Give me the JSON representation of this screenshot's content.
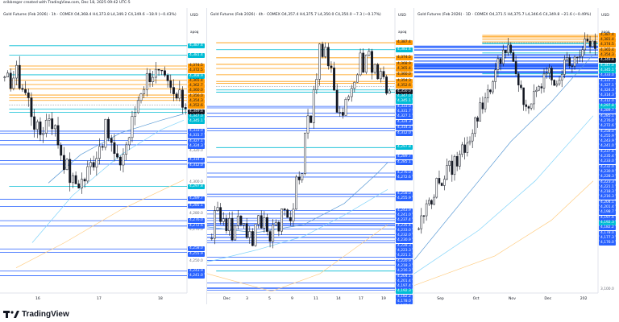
{
  "credit": "erikbreger created with TradingView.com, Dec 18, 2025 09:42 UTC-5",
  "brand": {
    "name": "TradingView"
  },
  "colors": {
    "orange": "#ff9800",
    "cyan": "#00bcd4",
    "blue": "#2962ff",
    "dark": "#131722",
    "white": "#ffffff"
  },
  "panels": [
    {
      "title": "Gold Futures (Feb 2026) · 1h · COMEX  O4,368.4  H4,373.8  L4,349.2  C4,349.6  −18.9 (−0.43%)",
      "currency": "USD",
      "apoq": "apoq",
      "price_labels": [
        {
          "text": "4,340.0",
          "y": 4340
        },
        {
          "text": "4,320.0",
          "y": 4320
        },
        {
          "text": "4,300.0",
          "y": 4300
        },
        {
          "text": "4,280.0",
          "y": 4280
        },
        {
          "text": "4,270.0",
          "y": 4270
        },
        {
          "text": "4,250.0",
          "y": 4250
        }
      ],
      "tags": [
        {
          "text": "4,387.4",
          "kind": "cyan",
          "y": 4387.4
        },
        {
          "text": "4,381.4",
          "kind": "cyan",
          "y": 4381.4
        },
        {
          "text": "4,374.5",
          "kind": "orange",
          "y": 4374.5
        },
        {
          "text": "4,372.5",
          "kind": "orange",
          "y": 4372.5
        },
        {
          "text": "4,368.9",
          "kind": "cyan",
          "y": 4368.9
        },
        {
          "text": "4,365.4",
          "kind": "orange",
          "y": 4365.4
        },
        {
          "text": "4,362.7",
          "kind": "orange",
          "y": 4362.7
        },
        {
          "text": "4,360.0",
          "kind": "orange",
          "y": 4360.0
        },
        {
          "text": "4,356.0",
          "kind": "orange",
          "y": 4356.0
        },
        {
          "text": "4,354.3",
          "kind": "orange",
          "y": 4354.3
        },
        {
          "text": "4,352.6",
          "kind": "orange",
          "y": 4352.6
        },
        {
          "text": "4,349.6",
          "kind": "dark",
          "y": 4349.6
        },
        {
          "text": "4,347.0",
          "kind": "cyan",
          "y": 4347.0
        },
        {
          "text": "4,345.1",
          "kind": "cyan",
          "y": 4345.1
        },
        {
          "text": "4,333.0",
          "kind": "blue",
          "y": 4333.0
        },
        {
          "text": "4,331.7",
          "kind": "blue",
          "y": 4331.7
        },
        {
          "text": "4,327.1",
          "kind": "blue",
          "y": 4327.1
        },
        {
          "text": "4,324.3",
          "kind": "blue",
          "y": 4324.3
        },
        {
          "text": "4,314.3",
          "kind": "blue",
          "y": 4314.3
        },
        {
          "text": "4,312.0",
          "kind": "blue",
          "y": 4312.0
        },
        {
          "text": "4,297.8",
          "kind": "cyan",
          "y": 4297.8
        },
        {
          "text": "4,289.7",
          "kind": "blue",
          "y": 4289.7
        },
        {
          "text": "4,285.1",
          "kind": "blue",
          "y": 4285.1
        },
        {
          "text": "4,276.0",
          "kind": "blue",
          "y": 4276.0
        },
        {
          "text": "4,272.6",
          "kind": "blue",
          "y": 4272.6
        },
        {
          "text": "4,258.0",
          "kind": "blue",
          "y": 4258.0
        },
        {
          "text": "4,255.9",
          "kind": "blue",
          "y": 4255.9
        },
        {
          "text": "4,243.9",
          "kind": "blue",
          "y": 4243.9
        },
        {
          "text": "4,241.0",
          "kind": "blue",
          "y": 4241.0
        }
      ],
      "x_labels": [
        "16",
        "17",
        "18"
      ]
    },
    {
      "title": "Gold Futures (Feb 2026) · 4h · COMEX  O4,357.4  H4,375.7  L4,350.0  C4,350.0  −7.3 (−0.17%)",
      "currency": "USD",
      "apoq": "apoq",
      "price_labels": [],
      "tags": [
        {
          "text": "4,387.4",
          "kind": "orange",
          "y": 4387.4
        },
        {
          "text": "4,381.4",
          "kind": "cyan",
          "y": 4381.4
        },
        {
          "text": "4,374.5",
          "kind": "orange",
          "y": 4374.5
        },
        {
          "text": "4,368.9",
          "kind": "orange",
          "y": 4368.9
        },
        {
          "text": "4,365.4",
          "kind": "orange",
          "y": 4365.4
        },
        {
          "text": "4,360.0",
          "kind": "orange",
          "y": 4360.0
        },
        {
          "text": "4,354.3",
          "kind": "orange",
          "y": 4354.3
        },
        {
          "text": "4,352.6",
          "kind": "orange",
          "y": 4352.6
        },
        {
          "text": "4,350.0",
          "kind": "dark",
          "y": 4350.0
        },
        {
          "text": "4,347.0",
          "kind": "cyan",
          "y": 4347.0
        },
        {
          "text": "4,345.1",
          "kind": "cyan",
          "y": 4345.1
        },
        {
          "text": "4,333.0",
          "kind": "blue",
          "y": 4333.0
        },
        {
          "text": "4,331.7",
          "kind": "blue",
          "y": 4331.7
        },
        {
          "text": "4,327.1",
          "kind": "blue",
          "y": 4327.1
        },
        {
          "text": "4,324.3",
          "kind": "blue",
          "y": 4324.3
        },
        {
          "text": "4,314.3",
          "kind": "blue",
          "y": 4314.3
        },
        {
          "text": "4,312.0",
          "kind": "blue",
          "y": 4312.0
        },
        {
          "text": "4,297.8",
          "kind": "cyan",
          "y": 4297.8
        },
        {
          "text": "4,289.7",
          "kind": "blue",
          "y": 4289.7
        },
        {
          "text": "4,285.1",
          "kind": "blue",
          "y": 4285.1
        },
        {
          "text": "4,276.0",
          "kind": "blue",
          "y": 4276.0
        },
        {
          "text": "4,272.6",
          "kind": "blue",
          "y": 4272.6
        },
        {
          "text": "4,258.0",
          "kind": "blue",
          "y": 4258.0
        },
        {
          "text": "4,255.9",
          "kind": "blue",
          "y": 4255.9
        },
        {
          "text": "4,243.9",
          "kind": "blue",
          "y": 4243.9
        },
        {
          "text": "4,241.0",
          "kind": "blue",
          "y": 4241.0
        },
        {
          "text": "4,237.4",
          "kind": "blue",
          "y": 4237.4
        },
        {
          "text": "4,235.4",
          "kind": "blue",
          "y": 4235.4
        },
        {
          "text": "4,233.0",
          "kind": "blue",
          "y": 4233.0
        },
        {
          "text": "4,232.0",
          "kind": "blue",
          "y": 4232.0
        },
        {
          "text": "4,230.9",
          "kind": "blue",
          "y": 4230.9
        },
        {
          "text": "4,228.3",
          "kind": "blue",
          "y": 4228.3
        },
        {
          "text": "4,223.3",
          "kind": "blue",
          "y": 4223.3
        },
        {
          "text": "4,221.1",
          "kind": "blue",
          "y": 4221.1
        },
        {
          "text": "4,220.9",
          "kind": "blue",
          "y": 4220.9
        },
        {
          "text": "4,218.3",
          "kind": "blue",
          "y": 4218.3
        },
        {
          "text": "4,216.3",
          "kind": "blue",
          "y": 4216.3
        },
        {
          "text": "4,204.1",
          "kind": "blue",
          "y": 4204.1
        },
        {
          "text": "4,201.4",
          "kind": "blue",
          "y": 4201.4
        },
        {
          "text": "4,197.4",
          "kind": "blue",
          "y": 4197.4
        },
        {
          "text": "4,192.3",
          "kind": "cyan",
          "y": 4192.3
        },
        {
          "text": "4,182.2",
          "kind": "blue",
          "y": 4182.2
        },
        {
          "text": "4,178.0",
          "kind": "blue",
          "y": 4178.0
        },
        {
          "text": "4,177.3",
          "kind": "blue",
          "y": 4177.3
        },
        {
          "text": "4,176.0",
          "kind": "blue",
          "y": 4176.0
        }
      ],
      "x_labels": [
        "Dec",
        "3",
        "5",
        "9",
        "11",
        "14",
        "17",
        "19"
      ]
    },
    {
      "title": "Gold Futures (Feb 2026) · 1D · COMEX  O4,371.5  H4,375.7  L4,346.6  C4,349.8  −21.6 (−0.49%)",
      "currency": "USD",
      "apoq": "apoq",
      "price_labels": [
        {
          "text": "3,100.0",
          "y": 3100
        }
      ],
      "tags": [
        {
          "text": "4,387.4",
          "kind": "orange",
          "y": 4387.4
        },
        {
          "text": "4,381.4",
          "kind": "orange",
          "y": 4381.4
        },
        {
          "text": "4,374.5",
          "kind": "orange",
          "y": 4374.5
        },
        {
          "text": "4,365.4",
          "kind": "orange",
          "y": 4365.4
        },
        {
          "text": "4,354.3",
          "kind": "orange",
          "y": 4354.3
        },
        {
          "text": "4,349.8",
          "kind": "dark",
          "y": 4349.8
        },
        {
          "text": "4,347.0",
          "kind": "cyan",
          "y": 4347.0
        },
        {
          "text": "4,345.1",
          "kind": "cyan",
          "y": 4345.1
        },
        {
          "text": "4,333.0",
          "kind": "blue",
          "y": 4333.0
        },
        {
          "text": "4,331.7",
          "kind": "blue",
          "y": 4331.7
        },
        {
          "text": "4,327.1",
          "kind": "blue",
          "y": 4327.1
        },
        {
          "text": "4,324.3",
          "kind": "blue",
          "y": 4324.3
        },
        {
          "text": "4,314.3",
          "kind": "blue",
          "y": 4314.3
        },
        {
          "text": "4,312.0",
          "kind": "blue",
          "y": 4312.0
        },
        {
          "text": "4,297.8",
          "kind": "cyan",
          "y": 4297.8
        },
        {
          "text": "4,289.7",
          "kind": "blue",
          "y": 4289.7
        },
        {
          "text": "4,285.1",
          "kind": "blue",
          "y": 4285.1
        },
        {
          "text": "4,276.0",
          "kind": "blue",
          "y": 4276.0
        },
        {
          "text": "4,272.6",
          "kind": "blue",
          "y": 4272.6
        },
        {
          "text": "4,258.0",
          "kind": "blue",
          "y": 4258.0
        },
        {
          "text": "4,255.9",
          "kind": "blue",
          "y": 4255.9
        },
        {
          "text": "4,243.9",
          "kind": "blue",
          "y": 4243.9
        },
        {
          "text": "4,241.0",
          "kind": "blue",
          "y": 4241.0
        },
        {
          "text": "4,237.4",
          "kind": "blue",
          "y": 4237.4
        },
        {
          "text": "4,235.4",
          "kind": "blue",
          "y": 4235.4
        },
        {
          "text": "4,233.0",
          "kind": "blue",
          "y": 4233.0
        },
        {
          "text": "4,232.0",
          "kind": "blue",
          "y": 4232.0
        },
        {
          "text": "4,230.9",
          "kind": "blue",
          "y": 4230.9
        },
        {
          "text": "4,228.3",
          "kind": "blue",
          "y": 4228.3
        },
        {
          "text": "4,223.3",
          "kind": "blue",
          "y": 4223.3
        },
        {
          "text": "4,221.1",
          "kind": "blue",
          "y": 4221.1
        },
        {
          "text": "4,218.3",
          "kind": "blue",
          "y": 4218.3
        },
        {
          "text": "4,216.3",
          "kind": "blue",
          "y": 4216.3
        },
        {
          "text": "4,204.1",
          "kind": "blue",
          "y": 4204.1
        },
        {
          "text": "4,201.4",
          "kind": "blue",
          "y": 4201.4
        },
        {
          "text": "4,198.7",
          "kind": "blue",
          "y": 4198.7
        },
        {
          "text": "4,197.4",
          "kind": "blue",
          "y": 4197.4
        },
        {
          "text": "4,192.3",
          "kind": "cyan",
          "y": 4192.3
        },
        {
          "text": "4,182.2",
          "kind": "blue",
          "y": 4182.2
        },
        {
          "text": "4,178.0",
          "kind": "blue",
          "y": 4178.0
        },
        {
          "text": "4,177.3",
          "kind": "blue",
          "y": 4177.3
        },
        {
          "text": "4,176.0",
          "kind": "blue",
          "y": 4176.0
        }
      ],
      "x_labels": [
        "Sep",
        "Oct",
        "Nov",
        "Dec",
        "202"
      ]
    }
  ]
}
